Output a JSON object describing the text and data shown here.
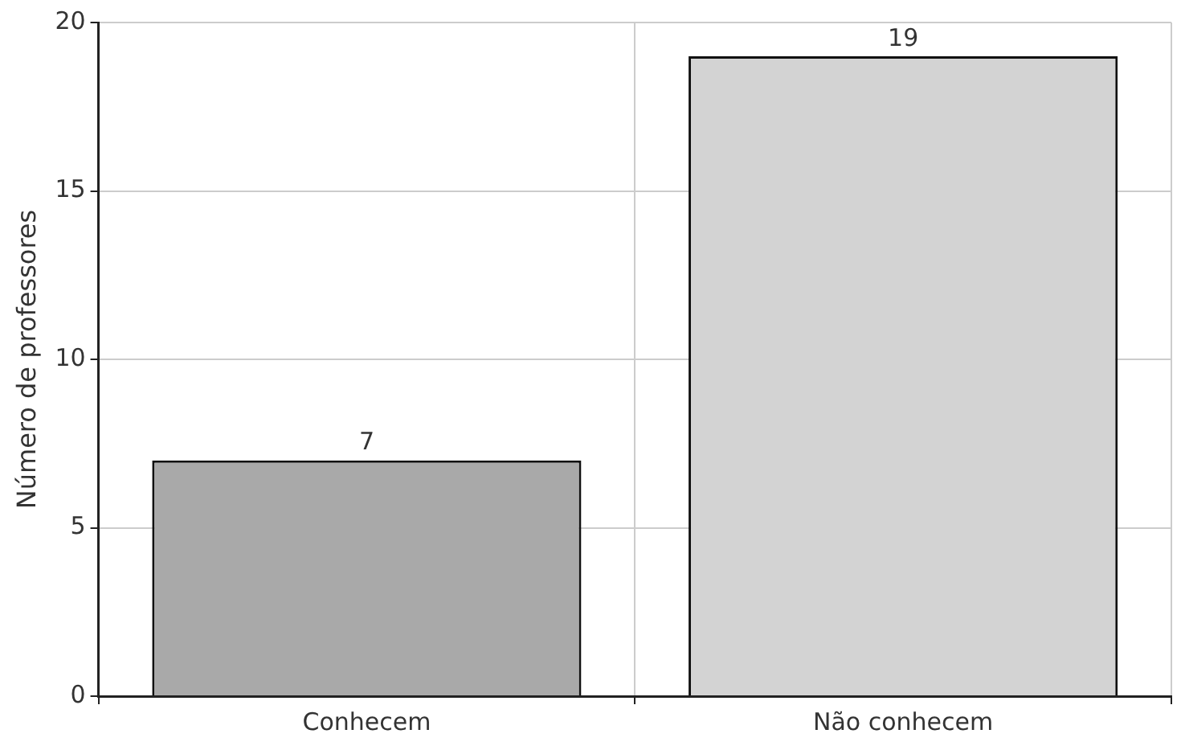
{
  "chart_data": {
    "type": "bar",
    "ylabel": "Número de professores",
    "categories": [
      "Conhecem",
      "Não conhecem"
    ],
    "values": [
      7,
      19
    ],
    "colors": [
      "#a9a9a9",
      "#d3d3d3"
    ],
    "ylim": [
      0,
      20
    ],
    "yticks": [
      0,
      5,
      10,
      15,
      20
    ],
    "grid": true,
    "data_labels": true,
    "legend": false
  }
}
